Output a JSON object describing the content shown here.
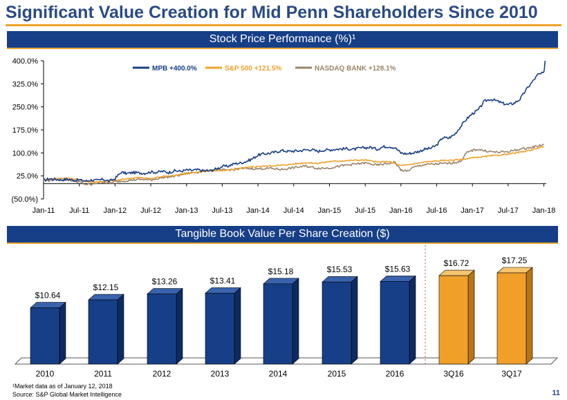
{
  "title": "Significant Value Creation for Mid Penn Shareholders Since 2010",
  "colors": {
    "navy": "#173f88",
    "orange": "#f0a029",
    "taupe": "#9a8469",
    "title": "#2a4a86"
  },
  "chart_data": [
    {
      "type": "line",
      "title": "Stock Price Performance (%)¹",
      "ylim": [
        -50,
        400
      ],
      "y_ticks": [
        "400.0%",
        "325.0%",
        "250.0%",
        "175.0%",
        "100.0%",
        "25.0%",
        "(50.0%)"
      ],
      "y_tick_values": [
        400,
        325,
        250,
        175,
        100,
        25,
        -50
      ],
      "x_ticks": [
        "Jan-11",
        "Jul-11",
        "Jan-12",
        "Jul-12",
        "Jan-13",
        "Jul-13",
        "Jan-14",
        "Jul-14",
        "Jan-15",
        "Jul-15",
        "Jan-16",
        "Jul-16",
        "Jan-17",
        "Jul-17",
        "Jan-18"
      ],
      "x_tick_positions": [
        0,
        6,
        12,
        18,
        24,
        30,
        36,
        42,
        48,
        54,
        60,
        66,
        72,
        78,
        84
      ],
      "x_range": [
        0,
        84.4
      ],
      "series": [
        {
          "name": "MPB +400.0%",
          "color": "#173f88",
          "points": [
            [
              0,
              10
            ],
            [
              1,
              16
            ],
            [
              2,
              14
            ],
            [
              3,
              12
            ],
            [
              4,
              15
            ],
            [
              5,
              11
            ],
            [
              6,
              12
            ],
            [
              7,
              8
            ],
            [
              8,
              12
            ],
            [
              9,
              10
            ],
            [
              10,
              14
            ],
            [
              11,
              8
            ],
            [
              12,
              16
            ],
            [
              13,
              37
            ],
            [
              14,
              33
            ],
            [
              15,
              36
            ],
            [
              16,
              35
            ],
            [
              17,
              34
            ],
            [
              18,
              38
            ],
            [
              19,
              37
            ],
            [
              20,
              40
            ],
            [
              21,
              36
            ],
            [
              22,
              42
            ],
            [
              23,
              40
            ],
            [
              24,
              44
            ],
            [
              25,
              43
            ],
            [
              26,
              45
            ],
            [
              27,
              41
            ],
            [
              28,
              42
            ],
            [
              29,
              48
            ],
            [
              30,
              56
            ],
            [
              31,
              57
            ],
            [
              32,
              65
            ],
            [
              33,
              67
            ],
            [
              34,
              72
            ],
            [
              35,
              80
            ],
            [
              36,
              93
            ],
            [
              37,
              97
            ],
            [
              38,
              99
            ],
            [
              39,
              103
            ],
            [
              40,
              108
            ],
            [
              41,
              105
            ],
            [
              42,
              106
            ],
            [
              43,
              107
            ],
            [
              44,
              110
            ],
            [
              45,
              111
            ],
            [
              46,
              105
            ],
            [
              47,
              109
            ],
            [
              48,
              110
            ],
            [
              49,
              112
            ],
            [
              50,
              113
            ],
            [
              51,
              114
            ],
            [
              52,
              111
            ],
            [
              53,
              115
            ],
            [
              54,
              117
            ],
            [
              55,
              118
            ],
            [
              56,
              112
            ],
            [
              57,
              120
            ],
            [
              58,
              121
            ],
            [
              59,
              117
            ],
            [
              60,
              100
            ],
            [
              61,
              97
            ],
            [
              62,
              100
            ],
            [
              63,
              105
            ],
            [
              64,
              112
            ],
            [
              65,
              115
            ],
            [
              66,
              125
            ],
            [
              67,
              150
            ],
            [
              68,
              148
            ],
            [
              69,
              160
            ],
            [
              70,
              185
            ],
            [
              71,
              210
            ],
            [
              72,
              228
            ],
            [
              73,
              240
            ],
            [
              74,
              268
            ],
            [
              75,
              275
            ],
            [
              76,
              270
            ],
            [
              77,
              262
            ],
            [
              78,
              257
            ],
            [
              79,
              262
            ],
            [
              80,
              275
            ],
            [
              81,
              305
            ],
            [
              82,
              330
            ],
            [
              83,
              355
            ],
            [
              84,
              360
            ],
            [
              84.2,
              400
            ]
          ]
        },
        {
          "name": "S&P 500 +121.5%",
          "color": "#f0a029",
          "points": [
            [
              0,
              12
            ],
            [
              2,
              16
            ],
            [
              4,
              18
            ],
            [
              6,
              12
            ],
            [
              7,
              8
            ],
            [
              8,
              5
            ],
            [
              9,
              6
            ],
            [
              10,
              7
            ],
            [
              12,
              10
            ],
            [
              14,
              16
            ],
            [
              16,
              20
            ],
            [
              18,
              16
            ],
            [
              20,
              24
            ],
            [
              22,
              26
            ],
            [
              24,
              33
            ],
            [
              26,
              38
            ],
            [
              28,
              42
            ],
            [
              30,
              42
            ],
            [
              32,
              47
            ],
            [
              34,
              52
            ],
            [
              36,
              56
            ],
            [
              38,
              58
            ],
            [
              40,
              60
            ],
            [
              42,
              64
            ],
            [
              44,
              68
            ],
            [
              46,
              66
            ],
            [
              48,
              72
            ],
            [
              50,
              74
            ],
            [
              52,
              76
            ],
            [
              54,
              77
            ],
            [
              56,
              70
            ],
            [
              58,
              72
            ],
            [
              60,
              58
            ],
            [
              62,
              64
            ],
            [
              64,
              70
            ],
            [
              66,
              74
            ],
            [
              68,
              76
            ],
            [
              70,
              78
            ],
            [
              72,
              84
            ],
            [
              74,
              88
            ],
            [
              76,
              92
            ],
            [
              78,
              96
            ],
            [
              80,
              102
            ],
            [
              82,
              110
            ],
            [
              84,
              122
            ]
          ]
        },
        {
          "name": "NASDAQ BANK +128.1%",
          "color": "#9a8469",
          "points": [
            [
              0,
              12
            ],
            [
              1,
              10
            ],
            [
              2,
              14
            ],
            [
              3,
              13
            ],
            [
              4,
              12
            ],
            [
              5,
              10
            ],
            [
              6,
              5
            ],
            [
              7,
              -2
            ],
            [
              8,
              -4
            ],
            [
              9,
              3
            ],
            [
              10,
              6
            ],
            [
              11,
              1
            ],
            [
              12,
              6
            ],
            [
              14,
              10
            ],
            [
              16,
              14
            ],
            [
              18,
              12
            ],
            [
              20,
              20
            ],
            [
              22,
              24
            ],
            [
              24,
              33
            ],
            [
              26,
              38
            ],
            [
              28,
              44
            ],
            [
              30,
              44
            ],
            [
              32,
              46
            ],
            [
              34,
              50
            ],
            [
              36,
              48
            ],
            [
              38,
              50
            ],
            [
              40,
              46
            ],
            [
              42,
              52
            ],
            [
              44,
              57
            ],
            [
              46,
              50
            ],
            [
              48,
              51
            ],
            [
              50,
              58
            ],
            [
              52,
              63
            ],
            [
              54,
              67
            ],
            [
              56,
              60
            ],
            [
              58,
              66
            ],
            [
              59,
              70
            ],
            [
              60,
              44
            ],
            [
              61,
              40
            ],
            [
              62,
              52
            ],
            [
              63,
              58
            ],
            [
              64,
              62
            ],
            [
              66,
              64
            ],
            [
              68,
              66
            ],
            [
              70,
              72
            ],
            [
              71,
              100
            ],
            [
              72,
              108
            ],
            [
              73,
              112
            ],
            [
              74,
              107
            ],
            [
              76,
              102
            ],
            [
              78,
              104
            ],
            [
              80,
              112
            ],
            [
              82,
              118
            ],
            [
              84,
              128
            ]
          ]
        }
      ]
    },
    {
      "type": "bar",
      "title": "Tangible Book Value Per Share Creation ($)",
      "categories": [
        "2010",
        "2011",
        "2012",
        "2013",
        "2014",
        "2015",
        "2016",
        "3Q16",
        "3Q17"
      ],
      "values": [
        10.64,
        12.15,
        13.26,
        13.41,
        15.18,
        15.53,
        15.63,
        16.72,
        17.25
      ],
      "labels": [
        "$10.64",
        "$12.15",
        "$13.26",
        "$13.41",
        "$15.18",
        "$15.53",
        "$15.63",
        "$16.72",
        "$17.25"
      ],
      "highlight": [
        "3Q16",
        "3Q17"
      ],
      "ylim": [
        0,
        20
      ]
    }
  ],
  "footnotes": {
    "market_data": "¹Market data as of January 12, 2018",
    "source": "Source: S&P Global Market Intelligence"
  },
  "page_number": "11"
}
